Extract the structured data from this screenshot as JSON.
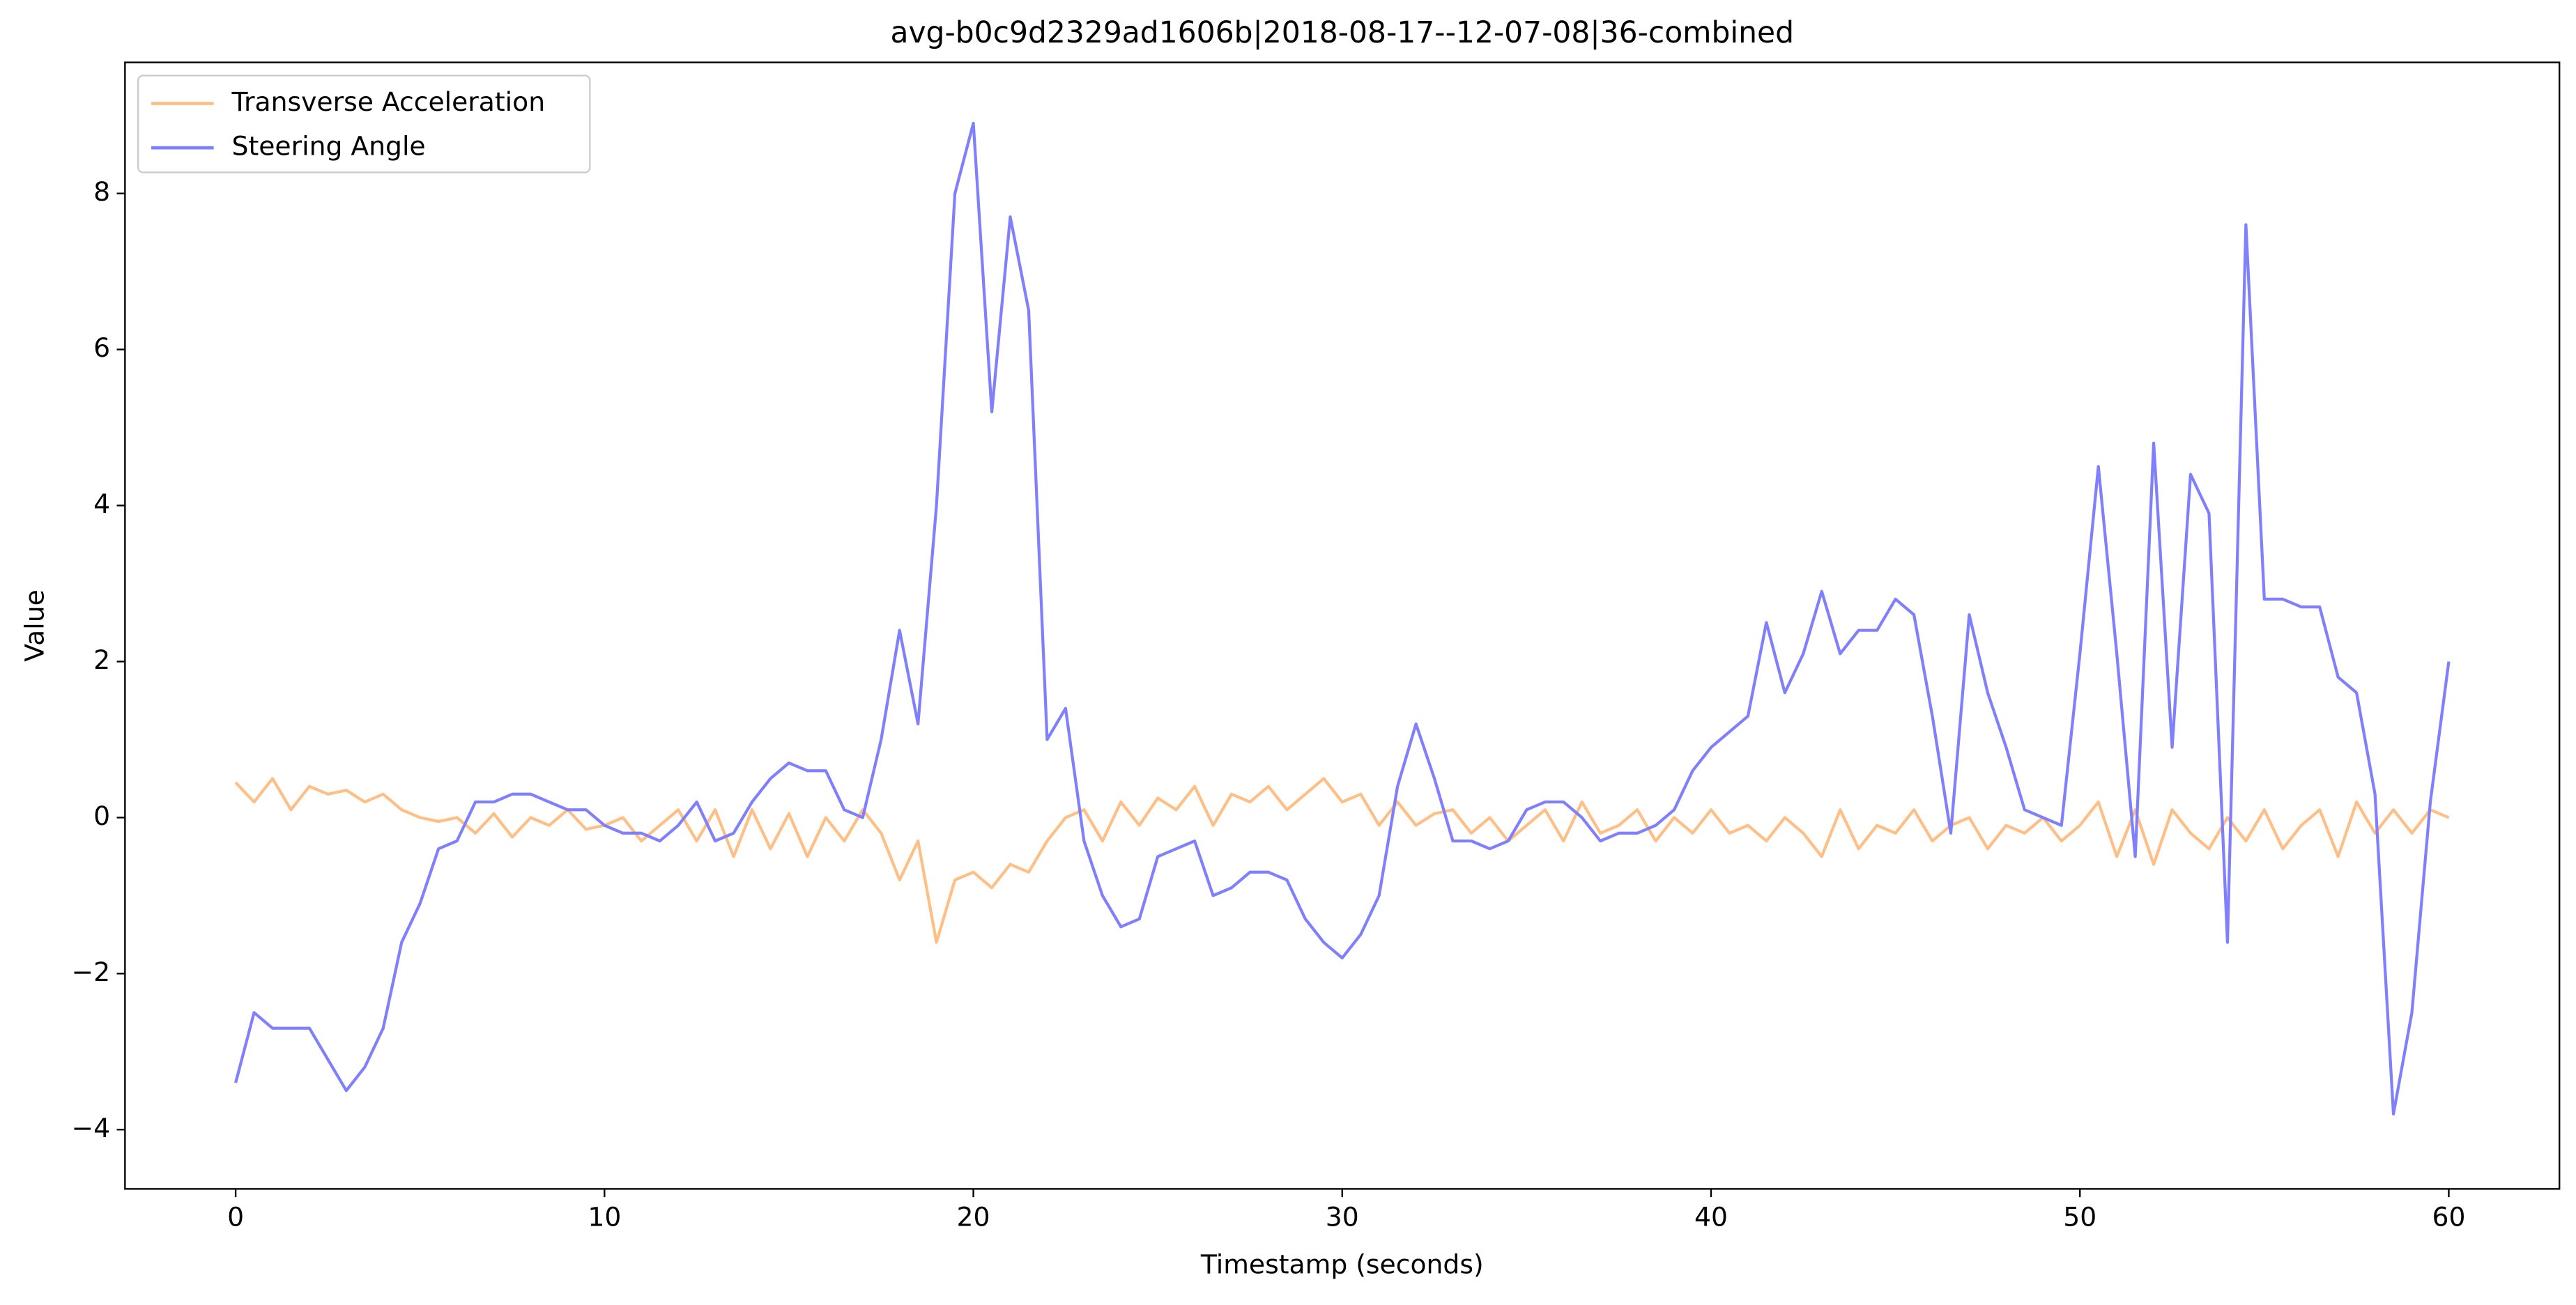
{
  "chart_data": {
    "type": "line",
    "title": "avg-b0c9d2329ad1606b|2018-08-17--12-07-08|36-combined",
    "x_label": "Timestamp (seconds)",
    "y_label": "Value",
    "x": [
      0,
      0.5,
      1,
      1.5,
      2,
      2.5,
      3,
      3.5,
      4,
      4.5,
      5,
      5.5,
      6,
      6.5,
      7,
      7.5,
      8,
      8.5,
      9,
      9.5,
      10,
      10.5,
      11,
      11.5,
      12,
      12.5,
      13,
      13.5,
      14,
      14.5,
      15,
      15.5,
      16,
      16.5,
      17,
      17.5,
      18,
      18.5,
      19,
      19.5,
      20,
      20.5,
      21,
      21.5,
      22,
      22.5,
      23,
      23.5,
      24,
      24.5,
      25,
      25.5,
      26,
      26.5,
      27,
      27.5,
      28,
      28.5,
      29,
      29.5,
      30,
      30.5,
      31,
      31.5,
      32,
      32.5,
      33,
      33.5,
      34,
      34.5,
      35,
      35.5,
      36,
      36.5,
      37,
      37.5,
      38,
      38.5,
      39,
      39.5,
      40,
      40.5,
      41,
      41.5,
      42,
      42.5,
      43,
      43.5,
      44,
      44.5,
      45,
      45.5,
      46,
      46.5,
      47,
      47.5,
      48,
      48.5,
      49,
      49.5,
      50,
      50.5,
      51,
      51.5,
      52,
      52.5,
      53,
      53.5,
      54,
      54.5,
      55,
      55.5,
      56,
      56.5,
      57,
      57.5,
      58,
      58.5,
      59,
      59.5,
      60
    ],
    "series": [
      {
        "name": "Transverse Acceleration",
        "color": "#ffbf86",
        "values": [
          0.45,
          0.2,
          0.5,
          0.1,
          0.4,
          0.3,
          0.35,
          0.2,
          0.3,
          0.1,
          0.0,
          -0.05,
          0.0,
          -0.2,
          0.05,
          -0.25,
          0.0,
          -0.1,
          0.1,
          -0.15,
          -0.1,
          0.0,
          -0.3,
          -0.1,
          0.1,
          -0.3,
          0.1,
          -0.5,
          0.1,
          -0.4,
          0.05,
          -0.5,
          0.0,
          -0.3,
          0.1,
          -0.2,
          -0.8,
          -0.3,
          -1.6,
          -0.8,
          -0.7,
          -0.9,
          -0.6,
          -0.7,
          -0.3,
          0.0,
          0.1,
          -0.3,
          0.2,
          -0.1,
          0.25,
          0.1,
          0.4,
          -0.1,
          0.3,
          0.2,
          0.4,
          0.1,
          0.3,
          0.5,
          0.2,
          0.3,
          -0.1,
          0.2,
          -0.1,
          0.05,
          0.1,
          -0.2,
          0.0,
          -0.3,
          -0.1,
          0.1,
          -0.3,
          0.2,
          -0.2,
          -0.1,
          0.1,
          -0.3,
          0.0,
          -0.2,
          0.1,
          -0.2,
          -0.1,
          -0.3,
          0.0,
          -0.2,
          -0.5,
          0.1,
          -0.4,
          -0.1,
          -0.2,
          0.1,
          -0.3,
          -0.1,
          0.0,
          -0.4,
          -0.1,
          -0.2,
          0.0,
          -0.3,
          -0.1,
          0.2,
          -0.5,
          0.1,
          -0.6,
          0.1,
          -0.2,
          -0.4,
          0.0,
          -0.3,
          0.1,
          -0.4,
          -0.1,
          0.1,
          -0.5,
          0.2,
          -0.2,
          0.1,
          -0.2,
          0.1,
          0.0
        ]
      },
      {
        "name": "Steering Angle",
        "color": "#8080ff",
        "values": [
          -3.4,
          -2.5,
          -2.7,
          -2.7,
          -2.7,
          -3.1,
          -3.5,
          -3.2,
          -2.7,
          -1.6,
          -1.1,
          -0.4,
          -0.3,
          0.2,
          0.2,
          0.3,
          0.3,
          0.2,
          0.1,
          0.1,
          -0.1,
          -0.2,
          -0.2,
          -0.3,
          -0.1,
          0.2,
          -0.3,
          -0.2,
          0.2,
          0.5,
          0.7,
          0.6,
          0.6,
          0.1,
          0.0,
          1.0,
          2.4,
          1.2,
          4.0,
          8.0,
          8.9,
          5.2,
          7.7,
          6.5,
          1.0,
          1.4,
          -0.3,
          -1.0,
          -1.4,
          -1.3,
          -0.5,
          -0.4,
          -0.3,
          -1.0,
          -0.9,
          -0.7,
          -0.7,
          -0.8,
          -1.3,
          -1.6,
          -1.8,
          -1.5,
          -1.0,
          0.4,
          1.2,
          0.5,
          -0.3,
          -0.3,
          -0.4,
          -0.3,
          0.1,
          0.2,
          0.2,
          0.0,
          -0.3,
          -0.2,
          -0.2,
          -0.1,
          0.1,
          0.6,
          0.9,
          1.1,
          1.3,
          2.5,
          1.6,
          2.1,
          2.9,
          2.1,
          2.4,
          2.4,
          2.8,
          2.6,
          1.3,
          -0.2,
          2.6,
          1.6,
          0.9,
          0.1,
          0.0,
          -0.1,
          2.1,
          4.5,
          2.1,
          -0.5,
          4.8,
          0.9,
          4.4,
          3.9,
          -1.6,
          7.6,
          2.8,
          2.8,
          2.7,
          2.7,
          1.8,
          1.6,
          0.3,
          -3.8,
          -2.5,
          0.2,
          2.0
        ]
      }
    ],
    "xlim": [
      -3,
      63
    ],
    "ylim": [
      -4.76,
      9.68
    ],
    "xticks": [
      0,
      10,
      20,
      30,
      40,
      50,
      60
    ],
    "yticks": [
      {
        "value": -4,
        "label": "−4"
      },
      {
        "value": -2,
        "label": "−2"
      },
      0,
      2,
      4,
      6,
      8
    ],
    "legend": "upper left"
  }
}
